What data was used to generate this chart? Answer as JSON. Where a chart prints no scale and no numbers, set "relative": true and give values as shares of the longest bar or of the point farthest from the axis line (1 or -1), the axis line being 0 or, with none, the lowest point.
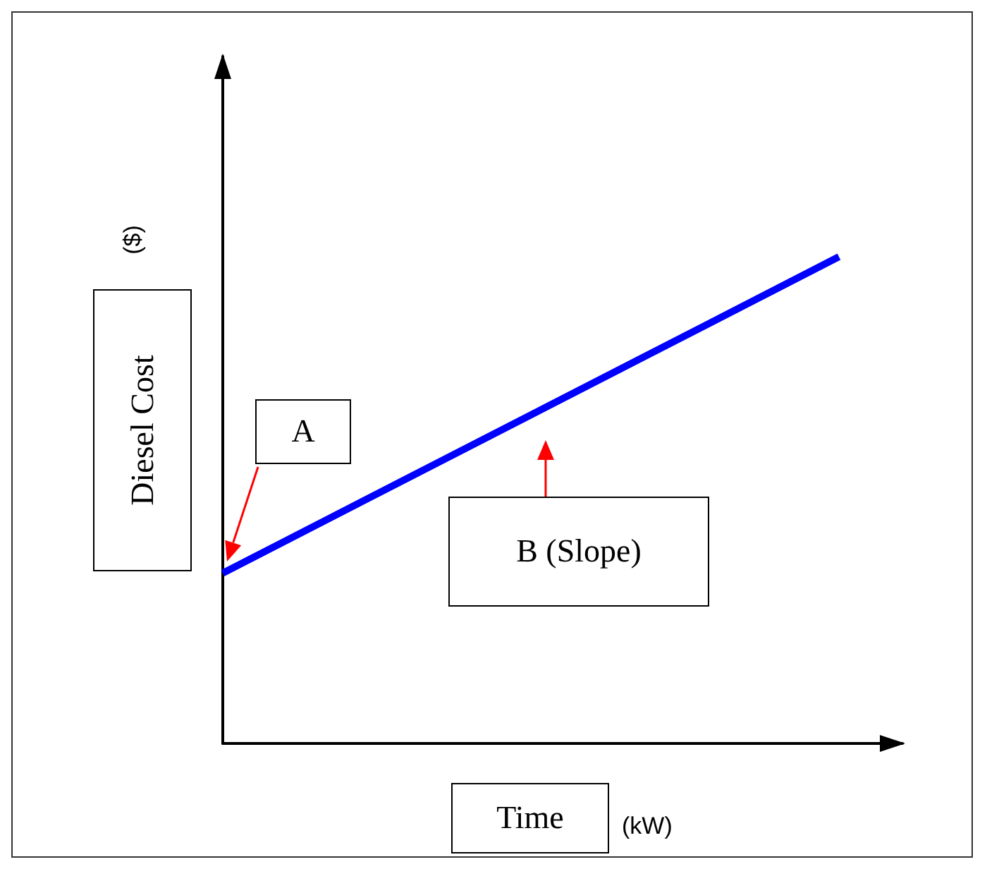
{
  "chart_data": {
    "type": "line",
    "relative": true,
    "xlabel": "Time (kW)",
    "ylabel": "Diesel Cost ($)",
    "categories": [
      null,
      null
    ],
    "marker": "none",
    "series": [
      {
        "color": "#0000ff",
        "values": [
          0.35,
          1
        ]
      }
    ],
    "annotations": [
      "A",
      "B (Slope)"
    ]
  }
}
